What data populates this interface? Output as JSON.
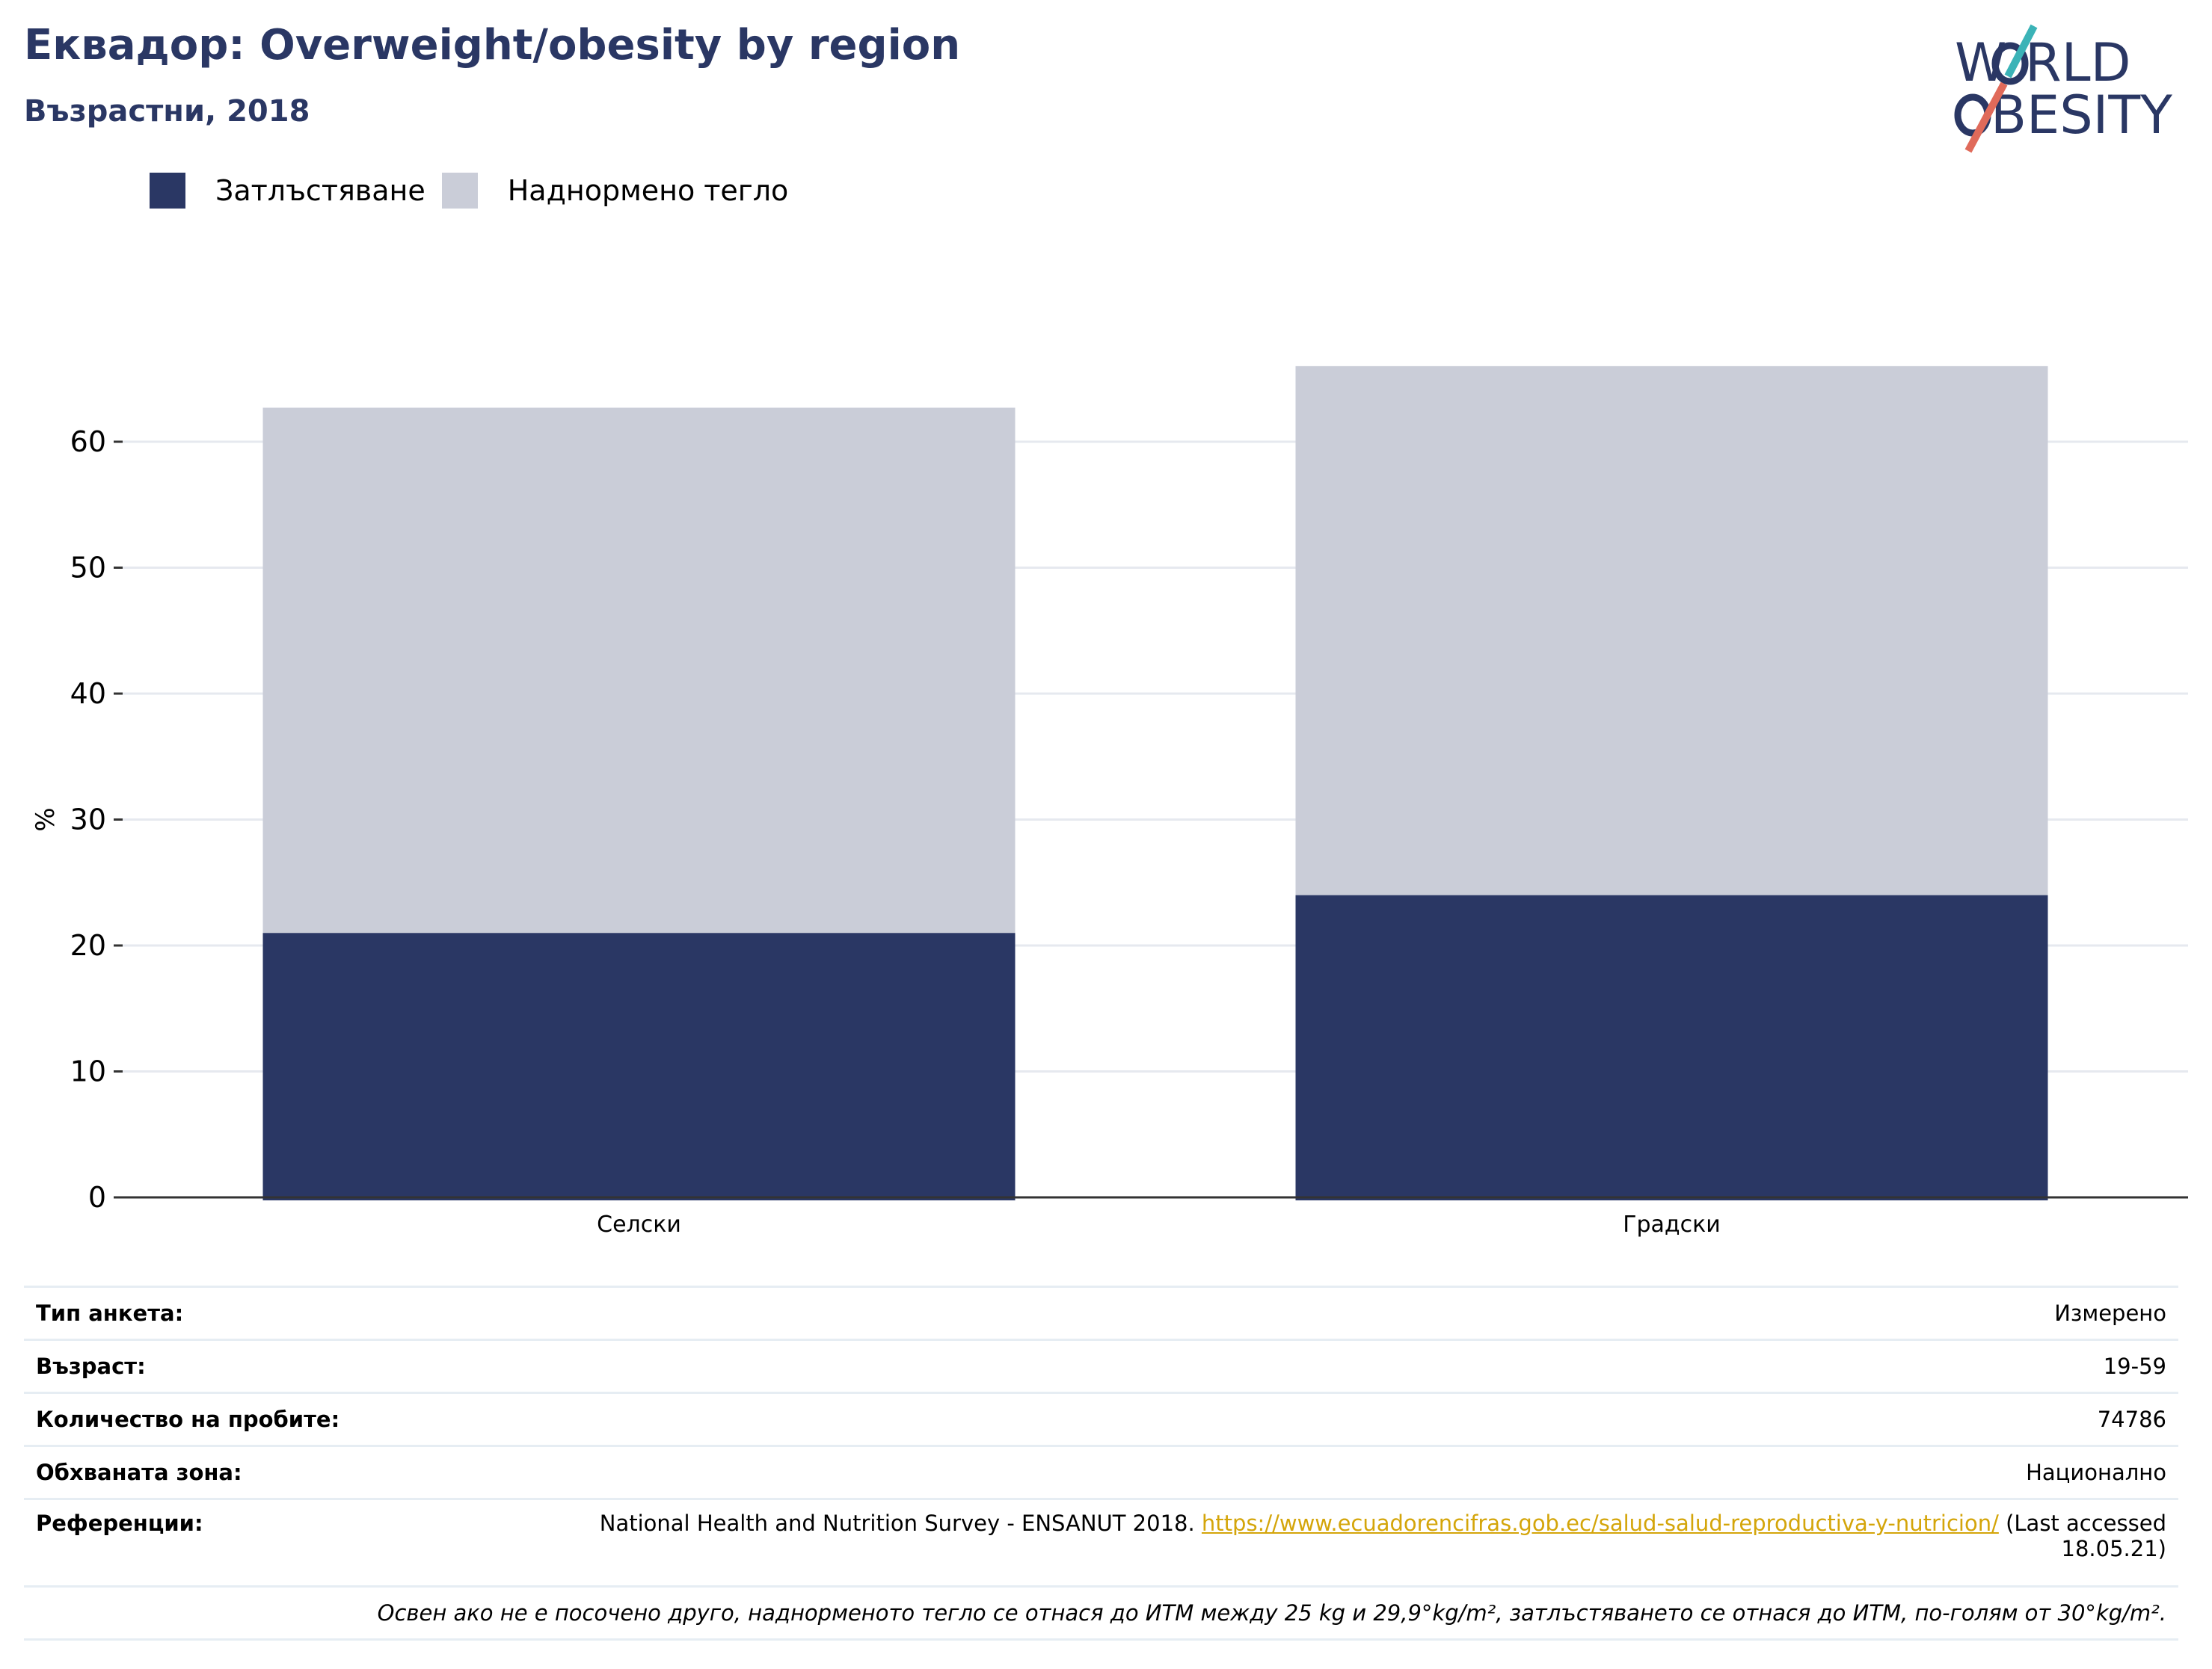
{
  "header": {
    "title": "Еквадор: Overweight/obesity by region",
    "subtitle": "Възрастни, 2018",
    "logo_text": "WORLD OBESITY"
  },
  "legend": [
    {
      "label": "Затлъстяване",
      "color": "#2a3764"
    },
    {
      "label": "Наднормено тегло",
      "color": "#cacdd8"
    }
  ],
  "chart_data": {
    "type": "bar",
    "stacked": true,
    "categories": [
      "Селски",
      "Градски"
    ],
    "series": [
      {
        "name": "Затлъстяване",
        "values": [
          21.0,
          24.0
        ],
        "color": "#2a3764"
      },
      {
        "name": "Наднормено тегло",
        "values": [
          41.7,
          42.0
        ],
        "color": "#cacdd8"
      }
    ],
    "title": "Еквадор: Overweight/obesity by region",
    "subtitle": "Възрастни, 2018",
    "xlabel": "",
    "ylabel": "%",
    "ylim": [
      0,
      70
    ],
    "yticks": [
      0,
      10,
      20,
      30,
      40,
      50,
      60
    ],
    "grid": true,
    "legend_position": "top-left"
  },
  "meta": [
    {
      "key": "Тип анкета:",
      "value": "Измерено"
    },
    {
      "key": "Възраст:",
      "value": "19-59"
    },
    {
      "key": "Количество на пробите:",
      "value": "74786"
    },
    {
      "key": "Обхваната зона:",
      "value": "Национално"
    }
  ],
  "references": {
    "key": "Референции:",
    "text": "National Health and Nutrition Survey - ENSANUT 2018.",
    "link": "https://www.ecuadorencifras.gob.ec/salud-salud-reproductiva-y-nutricion/",
    "suffix": "(Last accessed 18.05.21)"
  },
  "note": "Освен ако не е посочено друго, наднорменото тегло се отнася до ИТМ между 25 kg и 29,9°kg/m², затлъстяването се отнася до ИТМ, по-голям от 30°kg/m²."
}
